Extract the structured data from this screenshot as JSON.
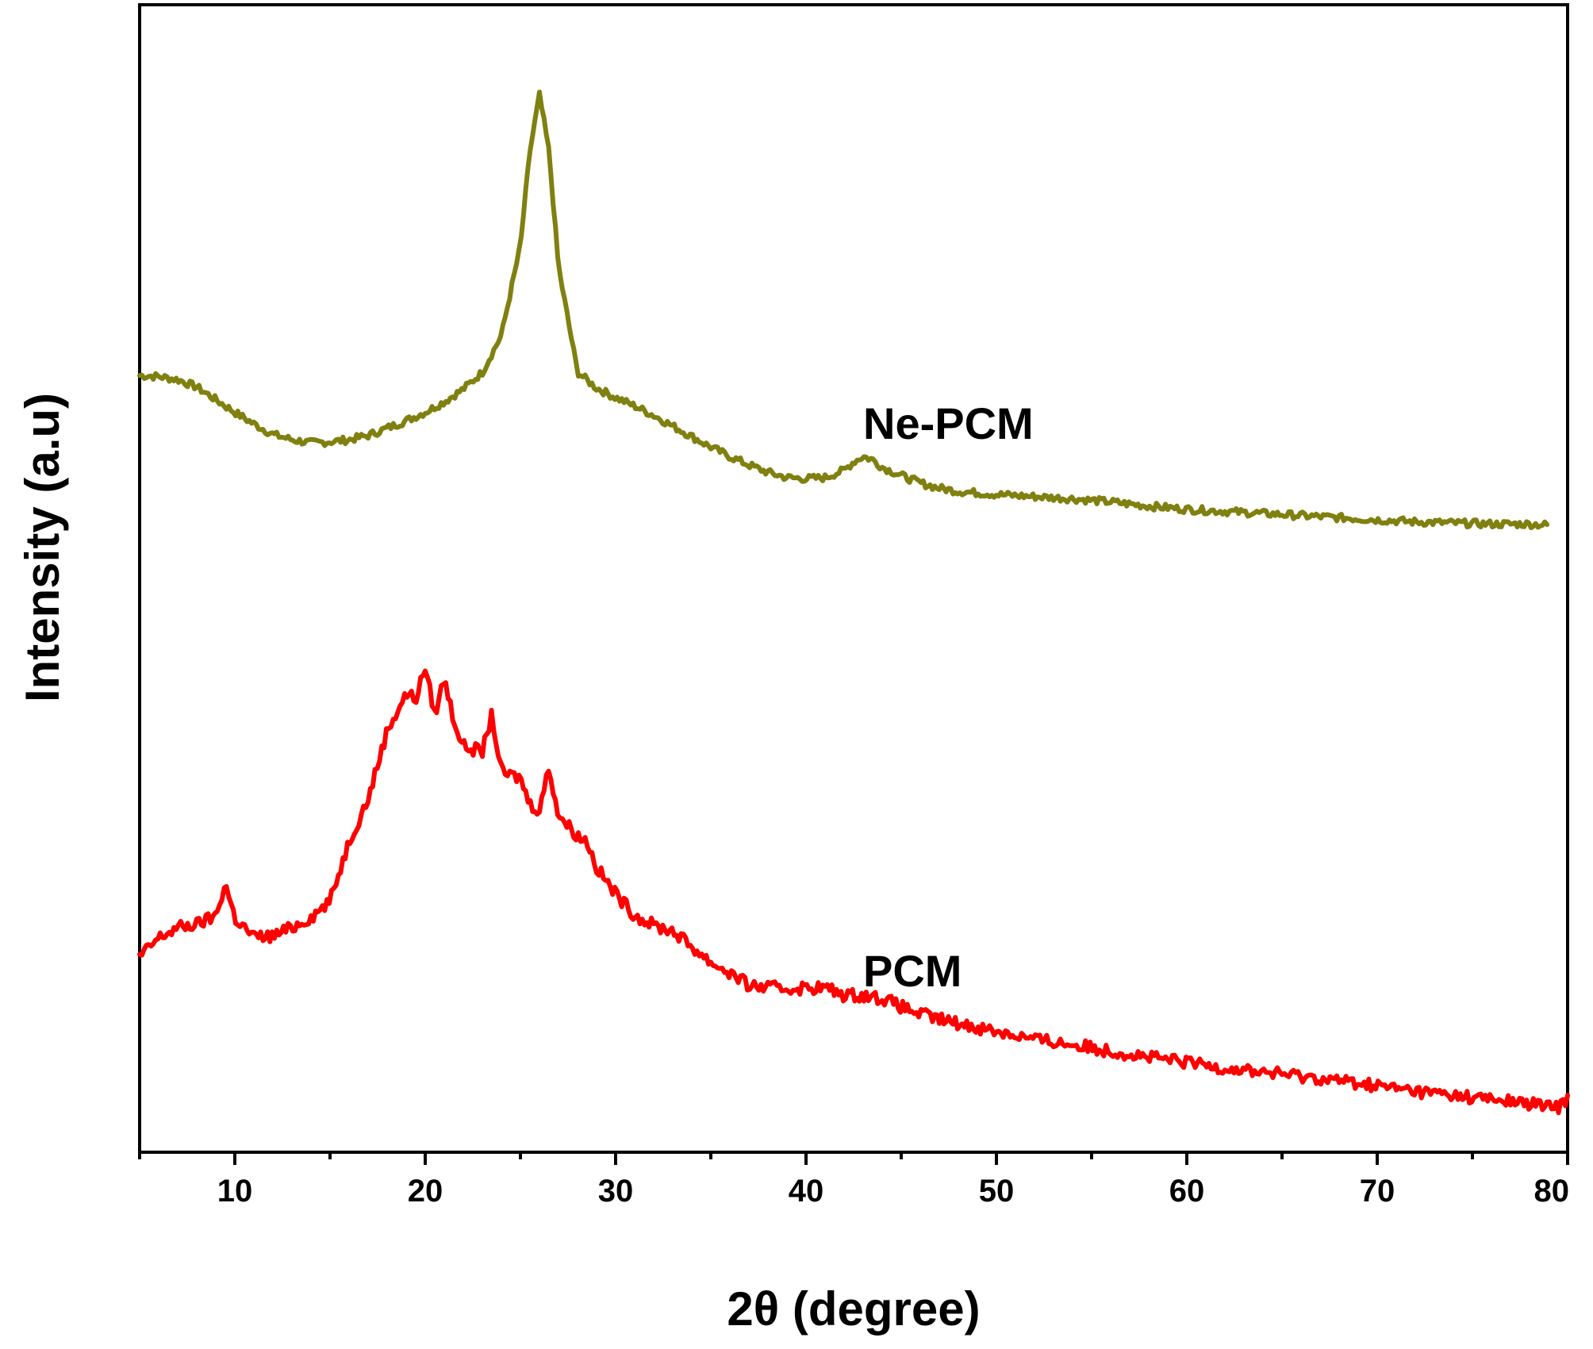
{
  "chart_data": {
    "type": "line",
    "xlabel": "2θ (degree)",
    "ylabel": "Intensity (a.u)",
    "xlim": [
      5,
      80
    ],
    "ylim": [
      0,
      100
    ],
    "x_ticks": [
      10,
      20,
      30,
      40,
      50,
      60,
      70,
      80
    ],
    "x_minor_step": 5,
    "y_ticks_shown": false,
    "grid": false,
    "legend": "none (series labelled inline)",
    "series": [
      {
        "name": "Ne-PCM",
        "color": "#808010",
        "points": [
          [
            5.0,
            70.7
          ],
          [
            6.0,
            70.6
          ],
          [
            7.0,
            70.3
          ],
          [
            8.0,
            69.6
          ],
          [
            9.0,
            68.4
          ],
          [
            10.0,
            67.2
          ],
          [
            11.0,
            66.1
          ],
          [
            12.0,
            65.1
          ],
          [
            13.0,
            64.6
          ],
          [
            14.0,
            64.3
          ],
          [
            15.0,
            64.4
          ],
          [
            16.0,
            64.6
          ],
          [
            17.0,
            65.0
          ],
          [
            18.0,
            65.7
          ],
          [
            19.0,
            66.4
          ],
          [
            20.0,
            67.2
          ],
          [
            21.0,
            68.2
          ],
          [
            22.0,
            69.4
          ],
          [
            23.0,
            71.0
          ],
          [
            24.0,
            74.5
          ],
          [
            25.0,
            83.0
          ],
          [
            25.5,
            92.0
          ],
          [
            26.0,
            97.3
          ],
          [
            26.5,
            92.0
          ],
          [
            27.0,
            81.0
          ],
          [
            28.0,
            71.0
          ],
          [
            29.0,
            69.5
          ],
          [
            30.0,
            68.6
          ],
          [
            31.0,
            67.8
          ],
          [
            32.0,
            66.9
          ],
          [
            33.0,
            65.9
          ],
          [
            34.0,
            64.9
          ],
          [
            35.0,
            63.9
          ],
          [
            36.0,
            63.0
          ],
          [
            37.0,
            62.2
          ],
          [
            38.0,
            61.5
          ],
          [
            39.0,
            61.0
          ],
          [
            40.0,
            60.9
          ],
          [
            41.0,
            61.0
          ],
          [
            42.0,
            61.7
          ],
          [
            42.5,
            62.5
          ],
          [
            43.0,
            63.0
          ],
          [
            43.5,
            62.7
          ],
          [
            44.0,
            62.0
          ],
          [
            45.0,
            61.2
          ],
          [
            46.0,
            60.5
          ],
          [
            47.0,
            60.0
          ],
          [
            48.0,
            59.7
          ],
          [
            50.0,
            59.4
          ],
          [
            52.0,
            59.2
          ],
          [
            54.0,
            59.0
          ],
          [
            56.0,
            58.7
          ],
          [
            58.0,
            58.3
          ],
          [
            60.0,
            58.0
          ],
          [
            62.0,
            57.8
          ],
          [
            64.0,
            57.6
          ],
          [
            66.0,
            57.4
          ],
          [
            68.0,
            57.2
          ],
          [
            70.0,
            57.0
          ],
          [
            72.0,
            56.8
          ],
          [
            74.0,
            56.7
          ],
          [
            76.0,
            56.6
          ],
          [
            78.0,
            56.6
          ],
          [
            79.0,
            56.5
          ]
        ]
      },
      {
        "name": "PCM",
        "color": "#ff0000",
        "points": [
          [
            5.0,
            15.5
          ],
          [
            6.0,
            17.3
          ],
          [
            7.0,
            18.3
          ],
          [
            8.0,
            18.6
          ],
          [
            9.0,
            19.4
          ],
          [
            9.5,
            22.5
          ],
          [
            10.0,
            19.2
          ],
          [
            11.0,
            17.4
          ],
          [
            12.0,
            17.5
          ],
          [
            13.0,
            18.3
          ],
          [
            14.0,
            19.3
          ],
          [
            15.0,
            20.8
          ],
          [
            16.0,
            26.5
          ],
          [
            17.0,
            30.5
          ],
          [
            18.0,
            37.0
          ],
          [
            19.0,
            40.5
          ],
          [
            19.5,
            40.0
          ],
          [
            20.0,
            43.0
          ],
          [
            20.5,
            38.5
          ],
          [
            21.0,
            42.0
          ],
          [
            21.5,
            38.0
          ],
          [
            22.0,
            35.5
          ],
          [
            23.0,
            35.0
          ],
          [
            23.5,
            38.5
          ],
          [
            24.0,
            33.0
          ],
          [
            25.0,
            32.5
          ],
          [
            25.5,
            30.0
          ],
          [
            26.0,
            29.5
          ],
          [
            26.5,
            33.5
          ],
          [
            27.0,
            29.0
          ],
          [
            28.0,
            27.0
          ],
          [
            28.5,
            26.5
          ],
          [
            29.0,
            24.0
          ],
          [
            30.0,
            21.5
          ],
          [
            31.0,
            19.5
          ],
          [
            32.0,
            18.5
          ],
          [
            33.0,
            18.0
          ],
          [
            34.0,
            16.5
          ],
          [
            35.0,
            15.0
          ],
          [
            36.0,
            14.0
          ],
          [
            37.0,
            12.8
          ],
          [
            38.0,
            12.6
          ],
          [
            39.0,
            12.5
          ],
          [
            40.0,
            12.6
          ],
          [
            41.0,
            12.6
          ],
          [
            42.0,
            11.9
          ],
          [
            43.0,
            11.9
          ],
          [
            44.0,
            11.6
          ],
          [
            45.0,
            10.8
          ],
          [
            46.0,
            10.1
          ],
          [
            47.0,
            9.6
          ],
          [
            48.0,
            9.2
          ],
          [
            50.0,
            8.5
          ],
          [
            52.0,
            7.7
          ],
          [
            54.0,
            7.2
          ],
          [
            56.0,
            6.6
          ],
          [
            58.0,
            6.0
          ],
          [
            60.0,
            5.5
          ],
          [
            62.0,
            5.0
          ],
          [
            64.0,
            4.6
          ],
          [
            66.0,
            4.2
          ],
          [
            68.0,
            3.8
          ],
          [
            70.0,
            3.3
          ],
          [
            72.0,
            2.8
          ],
          [
            74.0,
            2.4
          ],
          [
            76.0,
            2.0
          ],
          [
            78.0,
            1.6
          ],
          [
            79.5,
            1.2
          ],
          [
            80.0,
            2.2
          ]
        ]
      }
    ]
  }
}
